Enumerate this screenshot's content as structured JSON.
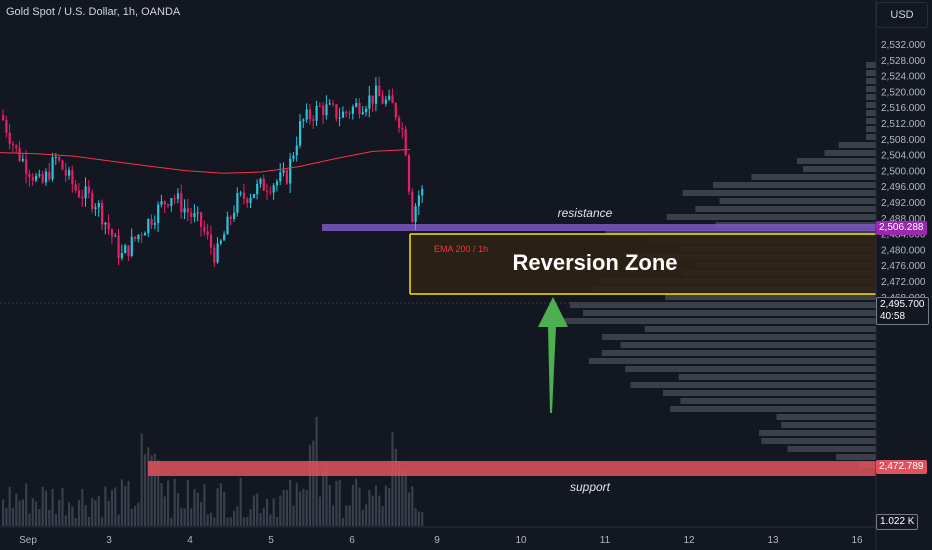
{
  "header": {
    "title": "Gold Spot / U.S. Dollar, 1h, OANDA"
  },
  "toolbar": {
    "currency": "USD"
  },
  "annotations": {
    "reversion_zone": "Reversion Zone",
    "resistance": "resistance",
    "support": "support",
    "ema": "EMA 200 / 1h"
  },
  "price_axis": {
    "ticks": [
      "2,532.000",
      "2,528.000",
      "2,524.000",
      "2,520.000",
      "2,516.000",
      "2,512.000",
      "2,508.000",
      "2,504.000",
      "2,500.000",
      "2,496.000",
      "2,492.000",
      "2,488.000",
      "2,484.000",
      "2,480.000",
      "2,476.000",
      "2,472.000",
      "2,468.000"
    ],
    "resistance_price": "2,506.288",
    "support_price": "2,472.789",
    "current_price": "2,495.700",
    "countdown": "40:58",
    "volume": "1.022 K"
  },
  "time_axis": {
    "ticks": [
      "Sep",
      "3",
      "4",
      "5",
      "6",
      "9",
      "10",
      "11",
      "12",
      "13",
      "16"
    ]
  },
  "colors": {
    "bg": "#131722",
    "up": "#26a69a",
    "down": "#e91e63",
    "zone_border": "#f7e400",
    "resistance": "#7e57c2",
    "support": "#e0525d",
    "ema": "#f23645",
    "arrow": "#4caf50"
  },
  "chart_data": {
    "type": "candlestick",
    "symbol": "Gold Spot / U.S. Dollar",
    "interval": "1h",
    "ylim": [
      2466,
      2534
    ],
    "resistance": 2506.288,
    "support": 2472.789,
    "current": 2495.7,
    "reversion_zone": [
      2497.5,
      2505
    ],
    "ema200": [
      2504.5,
      2504.2,
      2503.6,
      2502.3,
      2501.1,
      2499.9,
      2499.3,
      2499.6,
      2500.9,
      2503.0,
      2504.8,
      2505.3
    ]
  }
}
